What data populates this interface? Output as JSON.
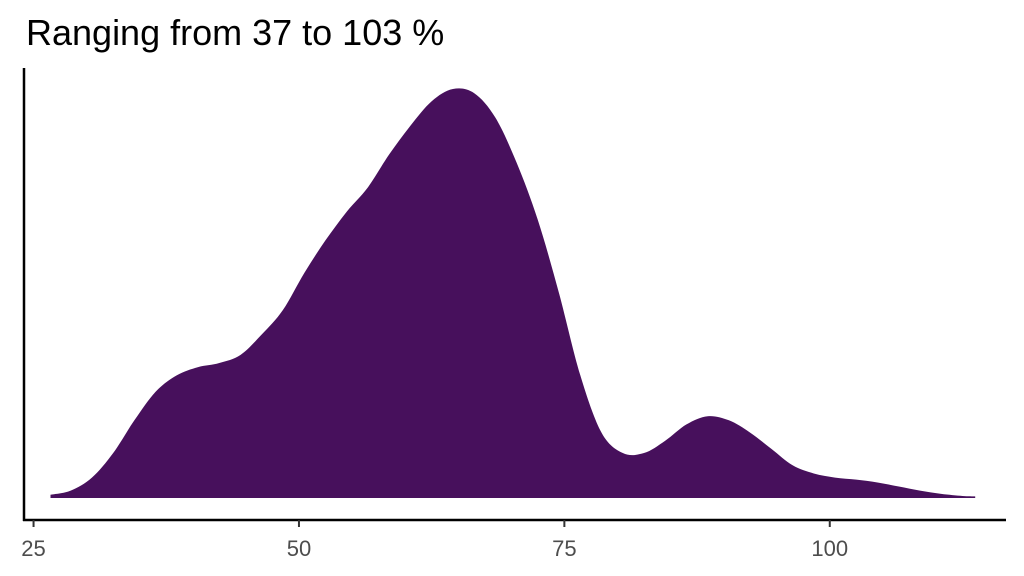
{
  "chart_data": {
    "type": "area",
    "subtype": "density",
    "title": "Ranging from 37 to 103 %",
    "xlabel": "",
    "ylabel": "",
    "xlim": [
      24.1,
      116.6
    ],
    "ylim": [
      0,
      1.05
    ],
    "x_ticks": [
      25,
      50,
      75,
      100
    ],
    "x_tick_labels": [
      "25",
      "50",
      "75",
      "100"
    ],
    "y_axis_ticks_shown": false,
    "grid": false,
    "legend": "none",
    "fill_color": "#47105c",
    "series": [
      {
        "x": [
          26.6,
          28.5,
          30.5,
          32.5,
          34.5,
          36.5,
          38.5,
          40.5,
          42.5,
          44.5,
          46.5,
          48.5,
          50.5,
          52.5,
          54.5,
          56.5,
          58.5,
          60.5,
          62.5,
          64.5,
          66.5,
          68.5,
          70.5,
          72.5,
          74.5,
          76.5,
          78.5,
          80.5,
          82.5,
          84.5,
          86.5,
          88.5,
          90.5,
          92.5,
          94.5,
          96.5,
          98.5,
          100.5,
          102.5,
          104.5,
          106.5,
          108.5,
          110.5,
          112.5,
          113.7
        ],
        "y": [
          0.008,
          0.018,
          0.05,
          0.11,
          0.19,
          0.26,
          0.3,
          0.32,
          0.33,
          0.35,
          0.4,
          0.46,
          0.55,
          0.63,
          0.7,
          0.76,
          0.84,
          0.91,
          0.97,
          1.0,
          0.99,
          0.93,
          0.82,
          0.68,
          0.5,
          0.3,
          0.16,
          0.11,
          0.11,
          0.14,
          0.18,
          0.2,
          0.19,
          0.16,
          0.12,
          0.08,
          0.06,
          0.05,
          0.045,
          0.038,
          0.028,
          0.018,
          0.01,
          0.005,
          0.004
        ]
      }
    ]
  }
}
